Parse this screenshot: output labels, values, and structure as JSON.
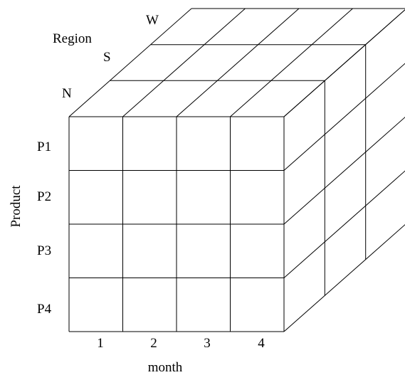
{
  "diagram": {
    "title": "",
    "region": {
      "axis_label": "Region",
      "levels": [
        "N",
        "S",
        "W"
      ]
    },
    "product": {
      "axis_label": "Product",
      "levels": [
        "P1",
        "P2",
        "P3",
        "P4"
      ]
    },
    "month": {
      "axis_label": "month",
      "levels": [
        "1",
        "2",
        "3",
        "4"
      ]
    },
    "line_color": "#000000",
    "background": "#ffffff"
  }
}
